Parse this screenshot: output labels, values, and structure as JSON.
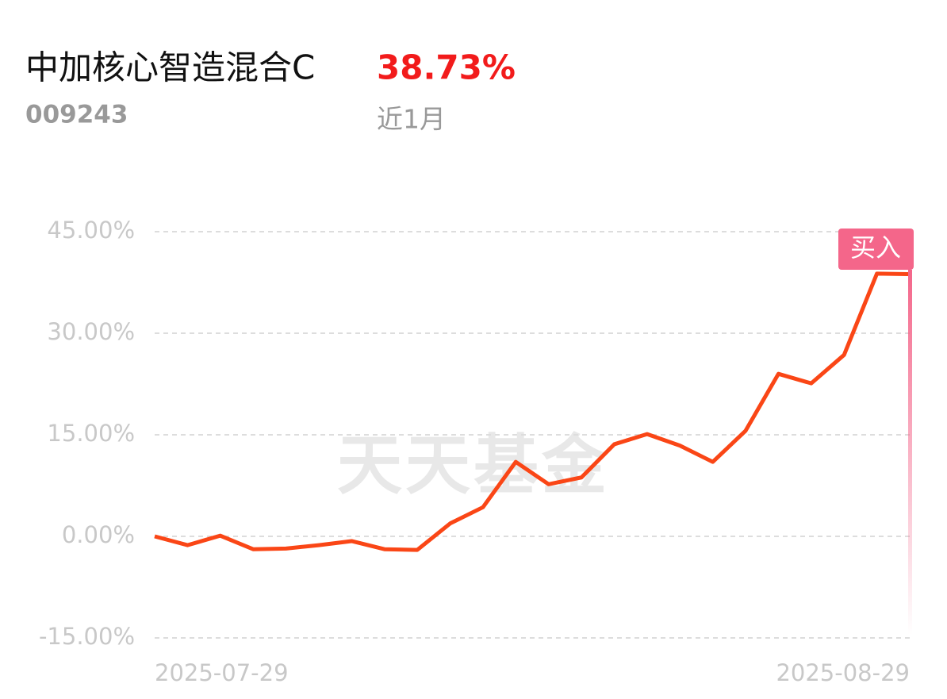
{
  "header": {
    "title": "中加核心智造混合C",
    "code": "009243",
    "return": {
      "value": 38.73,
      "label": "38.73%"
    },
    "period": "近1月"
  },
  "watermark": "天天基金",
  "button": "买入",
  "chart_data": {
    "type": "line",
    "categories": [
      "2025-07-29",
      null,
      null,
      null,
      null,
      null,
      null,
      null,
      null,
      null,
      null,
      null,
      null,
      null,
      null,
      null,
      null,
      null,
      null,
      null,
      null,
      null,
      null,
      "2025-08-29"
    ],
    "series": [
      {
        "color": "#fa4616",
        "values": [
          0,
          -1.3,
          0.1,
          -1.9,
          -1.8,
          -1.3,
          -0.7,
          -1.9,
          -2.0,
          1.9,
          4.3,
          11.0,
          7.7,
          8.7,
          13.6,
          15.1,
          13.4,
          11.0,
          15.6,
          24.0,
          22.6,
          26.8,
          38.8,
          38.73
        ]
      }
    ],
    "ylim": [
      -15,
      45
    ],
    "yticks": [
      {
        "value": 45,
        "label": "45.00%"
      },
      {
        "value": 30,
        "label": "30.00%"
      },
      {
        "value": 15,
        "label": "15.00%"
      },
      {
        "value": 0,
        "label": "0.00%"
      },
      {
        "value": -15,
        "label": "-15.00%"
      }
    ],
    "grid": true
  }
}
